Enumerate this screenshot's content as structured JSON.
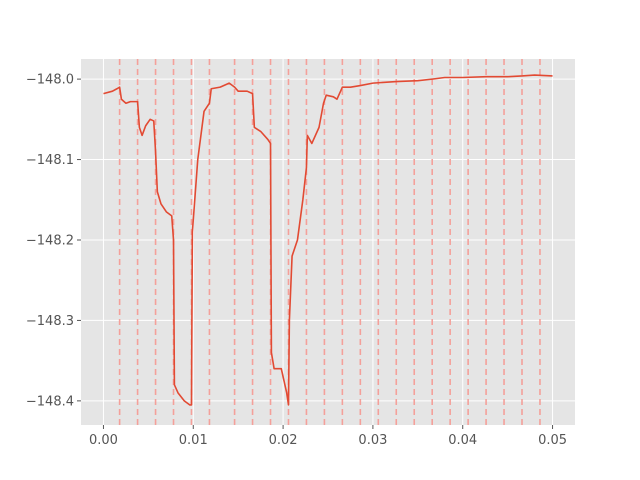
{
  "chart_data": {
    "type": "line",
    "title": "",
    "xlabel": "",
    "ylabel": "",
    "xlim": [
      -0.0025,
      0.0525
    ],
    "ylim": [
      -148.43,
      -147.975
    ],
    "x_ticks": [
      0.0,
      0.01,
      0.02,
      0.03,
      0.04,
      0.05
    ],
    "x_tick_labels": [
      "0.00",
      "0.01",
      "0.02",
      "0.03",
      "0.04",
      "0.05"
    ],
    "y_ticks": [
      -148.0,
      -148.1,
      -148.2,
      -148.3,
      -148.4
    ],
    "y_tick_labels": [
      "−148.0",
      "−148.1",
      "−148.2",
      "−148.3",
      "−148.4"
    ],
    "grid": true,
    "line_color": "#e24a33",
    "vline_color": "#f4a09a",
    "background_color": "#e5e5e5",
    "vlines_x": [
      0.0018,
      0.0038,
      0.0058,
      0.0078,
      0.0098,
      0.0118,
      0.0146,
      0.0166,
      0.0186,
      0.0206,
      0.0226,
      0.0246,
      0.0266,
      0.0286,
      0.0306,
      0.0326,
      0.0346,
      0.0366,
      0.0386,
      0.0406,
      0.0426,
      0.0446,
      0.0466,
      0.0486
    ],
    "series": [
      {
        "points": [
          [
            0.0,
            -148.018
          ],
          [
            0.001,
            -148.015
          ],
          [
            0.0015,
            -148.012
          ],
          [
            0.0018,
            -148.01
          ],
          [
            0.002,
            -148.025
          ],
          [
            0.0025,
            -148.03
          ],
          [
            0.003,
            -148.028
          ],
          [
            0.0038,
            -148.028
          ],
          [
            0.004,
            -148.06
          ],
          [
            0.0043,
            -148.07
          ],
          [
            0.0047,
            -148.058
          ],
          [
            0.0052,
            -148.05
          ],
          [
            0.0056,
            -148.052
          ],
          [
            0.0058,
            -148.09
          ],
          [
            0.006,
            -148.14
          ],
          [
            0.0064,
            -148.155
          ],
          [
            0.007,
            -148.165
          ],
          [
            0.0076,
            -148.17
          ],
          [
            0.0078,
            -148.2
          ],
          [
            0.0079,
            -148.38
          ],
          [
            0.0083,
            -148.39
          ],
          [
            0.009,
            -148.4
          ],
          [
            0.0096,
            -148.405
          ],
          [
            0.0098,
            -148.405
          ],
          [
            0.0099,
            -148.19
          ],
          [
            0.0105,
            -148.1
          ],
          [
            0.0112,
            -148.04
          ],
          [
            0.0118,
            -148.03
          ],
          [
            0.012,
            -148.012
          ],
          [
            0.013,
            -148.01
          ],
          [
            0.014,
            -148.005
          ],
          [
            0.0146,
            -148.01
          ],
          [
            0.015,
            -148.015
          ],
          [
            0.016,
            -148.015
          ],
          [
            0.0166,
            -148.018
          ],
          [
            0.0168,
            -148.06
          ],
          [
            0.0175,
            -148.065
          ],
          [
            0.0183,
            -148.075
          ],
          [
            0.0186,
            -148.08
          ],
          [
            0.0187,
            -148.34
          ],
          [
            0.019,
            -148.36
          ],
          [
            0.0198,
            -148.36
          ],
          [
            0.0204,
            -148.39
          ],
          [
            0.0206,
            -148.405
          ],
          [
            0.0207,
            -148.3
          ],
          [
            0.021,
            -148.22
          ],
          [
            0.0216,
            -148.2
          ],
          [
            0.0222,
            -148.15
          ],
          [
            0.0226,
            -148.11
          ],
          [
            0.0227,
            -148.07
          ],
          [
            0.0232,
            -148.08
          ],
          [
            0.024,
            -148.06
          ],
          [
            0.0245,
            -148.03
          ],
          [
            0.0248,
            -148.02
          ],
          [
            0.0256,
            -148.022
          ],
          [
            0.026,
            -148.025
          ],
          [
            0.0266,
            -148.01
          ],
          [
            0.0275,
            -148.01
          ],
          [
            0.0286,
            -148.008
          ],
          [
            0.03,
            -148.005
          ],
          [
            0.0326,
            -148.003
          ],
          [
            0.035,
            -148.002
          ],
          [
            0.0366,
            -148.0
          ],
          [
            0.038,
            -147.998
          ],
          [
            0.04,
            -147.998
          ],
          [
            0.0426,
            -147.997
          ],
          [
            0.045,
            -147.997
          ],
          [
            0.0466,
            -147.996
          ],
          [
            0.048,
            -147.995
          ],
          [
            0.05,
            -147.996
          ]
        ]
      }
    ]
  }
}
